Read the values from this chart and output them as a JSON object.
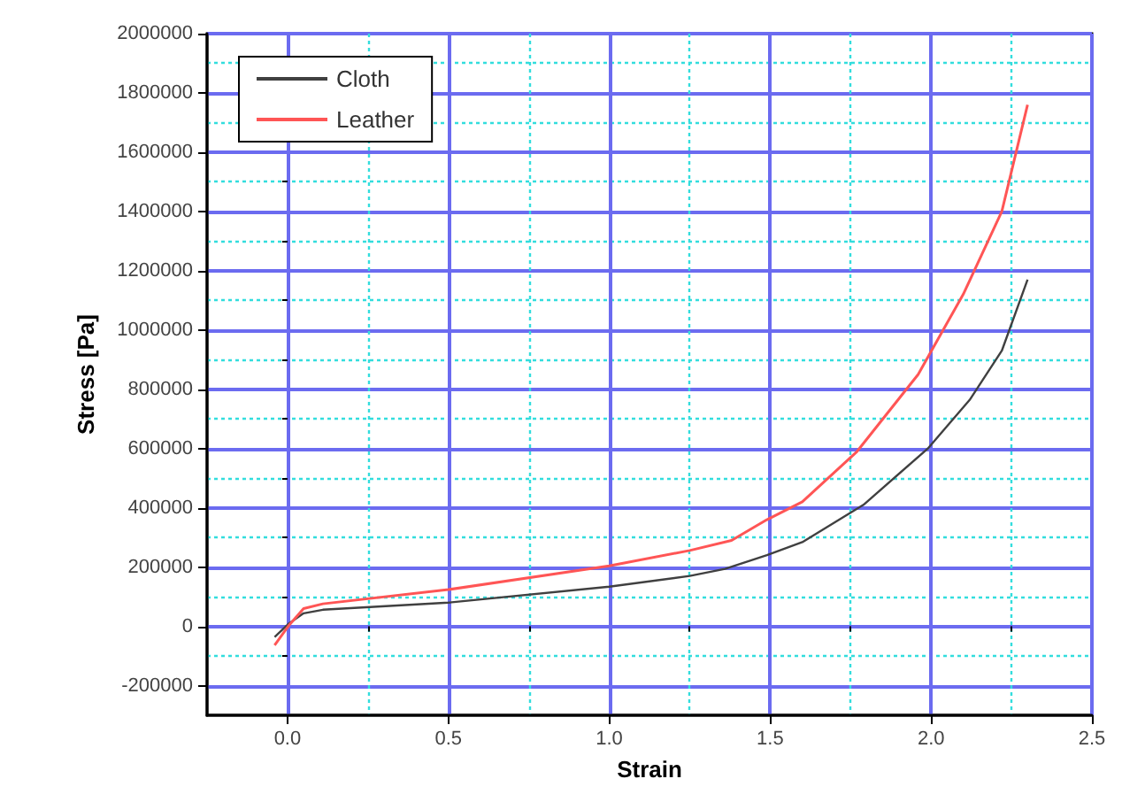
{
  "chart_data": {
    "type": "line",
    "xlabel": "Strain",
    "ylabel": "Stress [Pa]",
    "xlim": [
      -0.25,
      2.5
    ],
    "xticks": [
      {
        "value": 0,
        "label": "0.0"
      },
      {
        "value": 0.25,
        "label": null
      },
      0.5,
      {
        "value": 0.75,
        "label": null
      },
      {
        "value": 1,
        "label": "1.0"
      },
      {
        "value": 1.25,
        "label": null
      },
      1.5,
      {
        "value": 1.75,
        "label": null
      },
      {
        "value": 2,
        "label": "2.0"
      },
      {
        "value": 2.25,
        "label": null
      },
      2.5
    ],
    "ylim": [
      -300000,
      2000000
    ],
    "yticks": [
      -200000,
      {
        "value": -100000,
        "label": null
      },
      0,
      {
        "value": 100000,
        "label": null
      },
      200000,
      {
        "value": 300000,
        "label": null
      },
      400000,
      {
        "value": 500000,
        "label": null
      },
      600000,
      {
        "value": 700000,
        "label": null
      },
      800000,
      {
        "value": 900000,
        "label": null
      },
      1000000,
      {
        "value": 1100000,
        "label": null
      },
      1200000,
      {
        "value": 1300000,
        "label": null
      },
      1400000,
      {
        "value": 1500000,
        "label": null
      },
      1600000,
      {
        "value": 1700000,
        "label": null
      },
      1800000,
      {
        "value": 1900000,
        "label": null
      },
      2000000
    ],
    "grid": true,
    "legend": "top left",
    "marker": "none",
    "line_style": "solid",
    "series": [
      {
        "name": "Cloth",
        "color": "#404040",
        "x": [
          -0.04,
          0.005,
          0.05,
          0.11,
          0.5,
          1.0,
          1.25,
          1.36,
          1.49,
          1.6,
          1.79,
          1.99,
          2.12,
          2.22,
          2.3
        ],
        "values": [
          -36000,
          10000,
          44000,
          56000,
          80000,
          134000,
          170000,
          194000,
          240000,
          284000,
          410000,
          600000,
          764000,
          930000,
          1170000
        ]
      },
      {
        "name": "Leather",
        "color": "#ff5555",
        "x": [
          -0.04,
          0.005,
          0.05,
          0.11,
          0.5,
          1.0,
          1.25,
          1.38,
          1.49,
          1.6,
          1.77,
          1.96,
          2.1,
          2.22,
          2.3
        ],
        "values": [
          -64000,
          4000,
          60000,
          76000,
          124000,
          204000,
          256000,
          290000,
          360000,
          420000,
          590000,
          850000,
          1120000,
          1400000,
          1760000
        ]
      }
    ]
  }
}
